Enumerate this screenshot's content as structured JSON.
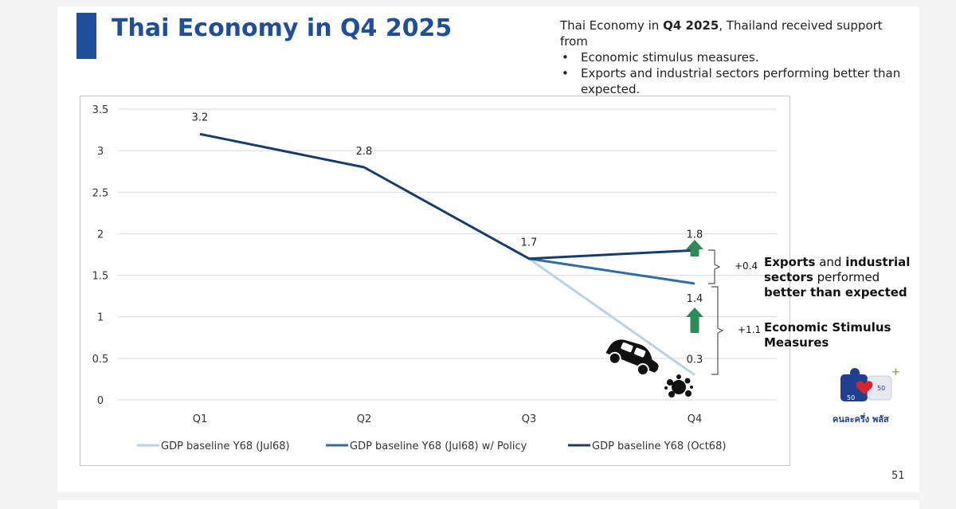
{
  "slide": {
    "title": "Thai Economy in Q4 2025",
    "notes": {
      "intro_pre": "Thai Economy in ",
      "intro_bold": "Q4 2025",
      "intro_post": ", Thailand received support from",
      "bullets": [
        "Economic stimulus measures.",
        "Exports and industrial sectors performing better than expected."
      ]
    },
    "page_number": "51"
  },
  "chart_data": {
    "type": "line",
    "categories": [
      "Q1",
      "Q2",
      "Q3",
      "Q4"
    ],
    "yticks": [
      "0",
      "0.5",
      "1",
      "1.5",
      "2",
      "2.5",
      "3",
      "3.5"
    ],
    "ylim": [
      0,
      3.5
    ],
    "grid": true,
    "legend_position": "bottom",
    "series": [
      {
        "name": "GDP baseline Y68 (Jul68)",
        "color": "#b9d3e6",
        "values": [
          null,
          null,
          1.7,
          0.3
        ]
      },
      {
        "name": "GDP baseline Y68 (Jul68) w/ Policy",
        "color": "#2e6da4",
        "values": [
          null,
          null,
          1.7,
          1.4
        ]
      },
      {
        "name": "GDP baseline Y68 (Oct68)",
        "color": "#163d6b",
        "values": [
          3.2,
          2.8,
          1.7,
          1.8
        ]
      }
    ],
    "data_labels": [
      {
        "category": "Q1",
        "value": 3.2,
        "text": "3.2"
      },
      {
        "category": "Q2",
        "value": 2.8,
        "text": "2.8"
      },
      {
        "category": "Q3",
        "value": 1.7,
        "text": "1.7"
      },
      {
        "category": "Q4",
        "value": 1.8,
        "text": "1.8"
      },
      {
        "category": "Q4",
        "value": 1.4,
        "text": "1.4"
      },
      {
        "category": "Q4",
        "value": 0.3,
        "text": "0.3"
      }
    ],
    "annotations": {
      "upper": {
        "delta": "+0.4",
        "text_b1": "Exports",
        "text_n1": " and ",
        "text_b2": "industrial sectors",
        "text_n2": " performed ",
        "text_b3": "better than expected"
      },
      "lower": {
        "delta": "+1.1",
        "text": "Economic Stimulus Measures"
      }
    },
    "arrow_color": "#2e8b57"
  },
  "logo": {
    "text": "คนละครึ่ง พลัส",
    "badge": "50"
  }
}
